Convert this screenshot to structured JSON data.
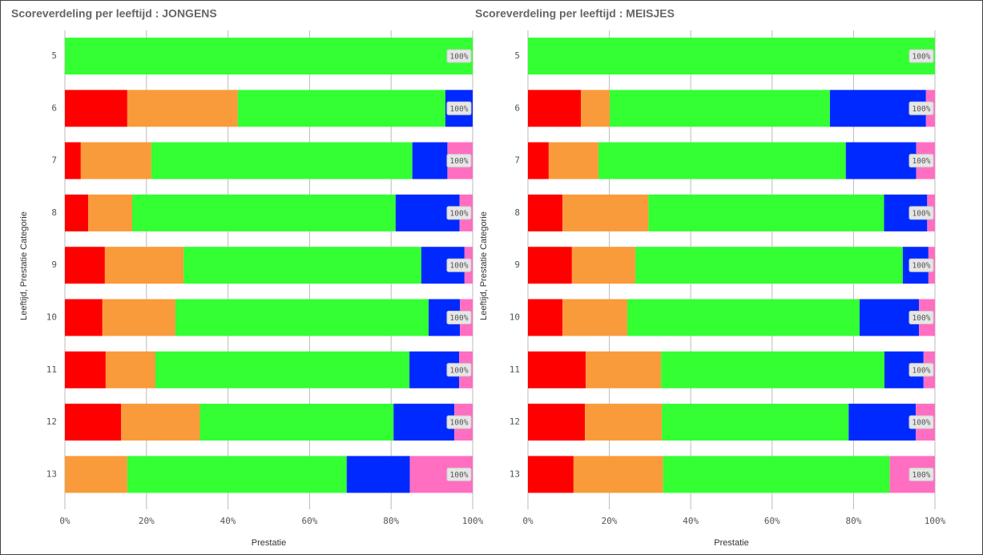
{
  "chart_data": [
    {
      "type": "stacked-barh",
      "title": "Scoreverdeling per leeftijd : JONGENS",
      "xlabel": "Prestatie",
      "ylabel": "Leeftijd, Prestatie Categorie",
      "categories": [
        "5",
        "6",
        "7",
        "8",
        "9",
        "10",
        "11",
        "12",
        "13"
      ],
      "series": [
        {
          "color": "#ff0000",
          "values": [
            0,
            15.3,
            3.9,
            5.7,
            9.8,
            9.2,
            10.0,
            13.8,
            0
          ]
        },
        {
          "color": "#f99b3a",
          "values": [
            0,
            27.1,
            17.3,
            10.8,
            19.3,
            17.9,
            12.2,
            19.3,
            15.3
          ]
        },
        {
          "color": "#33ff33",
          "values": [
            100,
            50.9,
            64.0,
            64.6,
            58.3,
            62.1,
            62.3,
            47.5,
            53.8
          ]
        },
        {
          "color": "#0029ff",
          "values": [
            0,
            6.7,
            8.6,
            15.7,
            10.6,
            7.7,
            12.2,
            14.9,
            15.5
          ]
        },
        {
          "color": "#ff6ec0",
          "values": [
            0,
            0,
            6.2,
            3.2,
            2.0,
            3.1,
            3.3,
            4.5,
            15.4
          ]
        }
      ],
      "total_labels": [
        "100%",
        "100%",
        "100%",
        "100%",
        "100%",
        "100%",
        "100%",
        "100%",
        "100%"
      ],
      "xlim": [
        0,
        100
      ],
      "xticks": [
        {
          "value": 0,
          "label": "0%"
        },
        {
          "value": 20,
          "label": "20%"
        },
        {
          "value": 40,
          "label": "40%"
        },
        {
          "value": 60,
          "label": "60%"
        },
        {
          "value": 80,
          "label": "80%"
        },
        {
          "value": 100,
          "label": "100%"
        }
      ],
      "grid": true
    },
    {
      "type": "stacked-barh",
      "title": "Scoreverdeling per leeftijd : MEISJES",
      "xlabel": "Prestatie",
      "ylabel": "Leeftijd, Prestatie Categorie",
      "categories": [
        "5",
        "6",
        "7",
        "8",
        "9",
        "10",
        "11",
        "12",
        "13"
      ],
      "series": [
        {
          "color": "#ff0000",
          "values": [
            0,
            13.0,
            5.1,
            8.5,
            10.8,
            8.5,
            14.2,
            14.0,
            11.2
          ]
        },
        {
          "color": "#f99b3a",
          "values": [
            0,
            7.1,
            12.2,
            21.1,
            15.6,
            15.9,
            18.5,
            18.9,
            22.0
          ]
        },
        {
          "color": "#33ff33",
          "values": [
            100,
            54.1,
            60.8,
            57.9,
            65.7,
            57.1,
            54.9,
            45.9,
            55.7
          ]
        },
        {
          "color": "#0029ff",
          "values": [
            0,
            23.6,
            17.3,
            10.6,
            6.3,
            14.6,
            9.6,
            16.5,
            0
          ]
        },
        {
          "color": "#ff6ec0",
          "values": [
            0,
            2.2,
            4.6,
            1.9,
            1.6,
            3.9,
            2.8,
            4.7,
            11.1
          ]
        }
      ],
      "total_labels": [
        "100%",
        "100%",
        "100%",
        "100%",
        "100%",
        "100%",
        "100%",
        "100%",
        "100%"
      ],
      "xlim": [
        0,
        100
      ],
      "xticks": [
        {
          "value": 0,
          "label": "0%"
        },
        {
          "value": 20,
          "label": "20%"
        },
        {
          "value": 40,
          "label": "40%"
        },
        {
          "value": 60,
          "label": "60%"
        },
        {
          "value": 80,
          "label": "80%"
        },
        {
          "value": 100,
          "label": "100%"
        }
      ],
      "grid": true
    }
  ]
}
